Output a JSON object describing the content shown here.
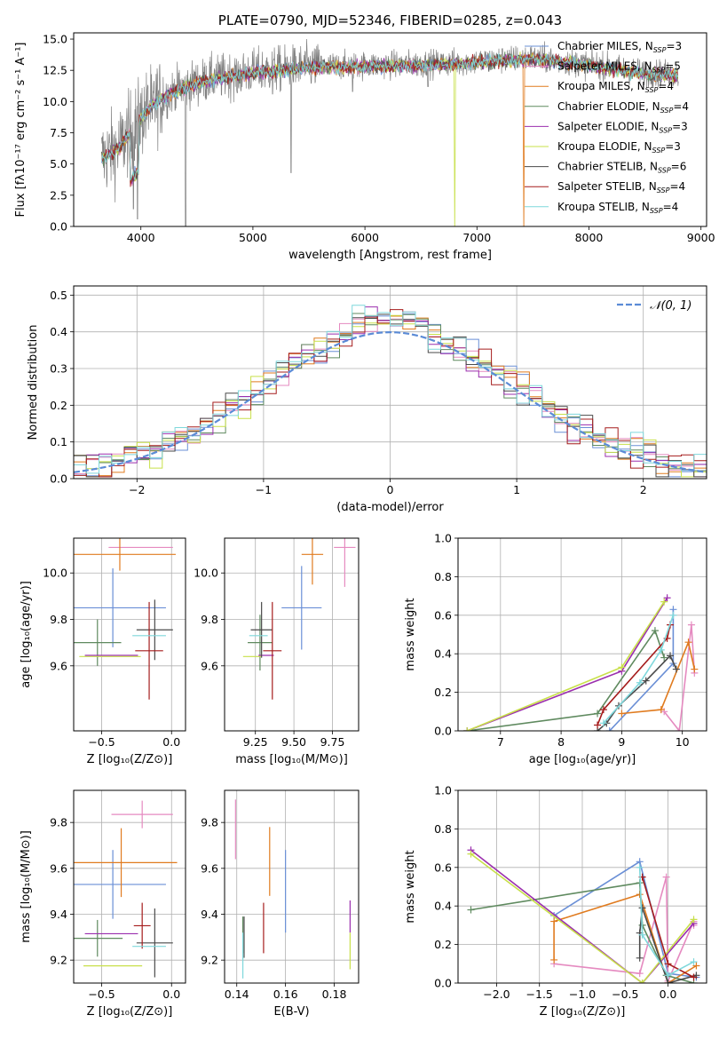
{
  "colors": {
    "Chabrier MILES": "#6a8fd6",
    "Salpeter MILES": "#e58ac0",
    "Kroupa MILES": "#e07b1f",
    "Chabrier ELODIE": "#5f8a5f",
    "Salpeter ELODIE": "#9b2fae",
    "Kroupa ELODIE": "#c8e04a",
    "Chabrier STELIB": "#4a4a4a",
    "Salpeter STELIB": "#a51c1c",
    "Kroupa STELIB": "#7fd8dc"
  },
  "chart_data": [
    {
      "id": "spectrum",
      "type": "line",
      "title": "PLATE=0790, MJD=52346, FIBERID=0285, z=0.043",
      "xlabel": "wavelength [Angstrom, rest frame]",
      "ylabel": "Flux [fλ10⁻¹⁷ erg cm⁻² s⁻¹ A⁻¹]",
      "xlim": [
        3400,
        9050
      ],
      "ylim": [
        0,
        15.5
      ],
      "xticks": [
        4000,
        5000,
        6000,
        7000,
        8000,
        9000
      ],
      "yticks": [
        0.0,
        2.5,
        5.0,
        7.5,
        10.0,
        12.5,
        15.0
      ],
      "grid": false,
      "legend_position": "right",
      "legend": [
        {
          "label": "Chabrier MILES, N",
          "sub": "SSP",
          "tail": "=3",
          "color": "#6a8fd6"
        },
        {
          "label": "Salpeter MILES, N",
          "sub": "SSP",
          "tail": "=5",
          "color": "#e58ac0"
        },
        {
          "label": "Kroupa MILES, N",
          "sub": "SSP",
          "tail": "=4",
          "color": "#e07b1f"
        },
        {
          "label": "Chabrier ELODIE, N",
          "sub": "SSP",
          "tail": "=4",
          "color": "#5f8a5f"
        },
        {
          "label": "Salpeter ELODIE, N",
          "sub": "SSP",
          "tail": "=3",
          "color": "#9b2fae"
        },
        {
          "label": "Kroupa ELODIE, N",
          "sub": "SSP",
          "tail": "=3",
          "color": "#c8e04a"
        },
        {
          "label": "Chabrier STELIB, N",
          "sub": "SSP",
          "tail": "=6",
          "color": "#4a4a4a"
        },
        {
          "label": "Salpeter STELIB, N",
          "sub": "SSP",
          "tail": "=4",
          "color": "#a51c1c"
        },
        {
          "label": "Kroupa STELIB, N",
          "sub": "SSP",
          "tail": "=4",
          "color": "#7fd8dc"
        }
      ],
      "observed_color": "#7f7f7f",
      "continuum": [
        [
          3650,
          5.5
        ],
        [
          3800,
          6.3
        ],
        [
          3950,
          8.2
        ],
        [
          4100,
          9.8
        ],
        [
          4300,
          10.9
        ],
        [
          4600,
          11.8
        ],
        [
          5000,
          12.4
        ],
        [
          5500,
          12.8
        ],
        [
          6000,
          12.9
        ],
        [
          6500,
          13.0
        ],
        [
          7000,
          13.2
        ],
        [
          7500,
          13.5
        ],
        [
          8000,
          13.0
        ],
        [
          8500,
          12.3
        ],
        [
          8800,
          12.2
        ]
      ],
      "observed_dips": [
        [
          3934,
          1.4
        ],
        [
          3969,
          0.6
        ],
        [
          4102,
          8.6
        ],
        [
          4305,
          9.3
        ],
        [
          4400,
          0.0
        ],
        [
          4861,
          10.7
        ],
        [
          5175,
          10.6
        ],
        [
          5340,
          4.3
        ],
        [
          5890,
          10.8
        ],
        [
          6563,
          11.2
        ]
      ],
      "model_dropouts": [
        {
          "series": "Kroupa ELODIE",
          "x": 6800
        },
        {
          "series": "Kroupa MILES",
          "x": 7420
        }
      ]
    },
    {
      "id": "residuals",
      "type": "step",
      "xlabel": "(data-model)/error",
      "ylabel": "Normed distribution",
      "xlim": [
        -2.5,
        2.5
      ],
      "ylim": [
        0,
        0.525
      ],
      "xticks": [
        -2,
        -1,
        0,
        1,
        2
      ],
      "yticks": [
        0.0,
        0.1,
        0.2,
        0.3,
        0.4,
        0.5
      ],
      "grid": true,
      "bin_width": 0.1,
      "reference": {
        "label": "𝒩(0, 1)",
        "color": "#5b8bd6",
        "legend_position": "top-right"
      }
    },
    {
      "id": "age-vs-Z",
      "type": "errorbar",
      "xlabel": "Z [log₁₀(Z/Z⊙)]",
      "ylabel": "age  [log₁₀(age/yr)]",
      "xlim": [
        -0.7,
        0.1
      ],
      "ylim": [
        9.32,
        10.15
      ],
      "xticks": [
        -0.5,
        0.0
      ],
      "yticks": [
        9.6,
        9.8,
        10.0
      ],
      "grid": true,
      "points": [
        {
          "series": "Chabrier MILES",
          "x": -0.42,
          "xerr": 0.38,
          "y": 9.85,
          "yerr": 0.17
        },
        {
          "series": "Salpeter MILES",
          "x": -0.22,
          "xerr": 0.23,
          "y": 10.11,
          "yerr": 0.0
        },
        {
          "series": "Kroupa MILES",
          "x": -0.37,
          "xerr": 0.4,
          "y": 10.08,
          "yerr": 0.07
        },
        {
          "series": "Chabrier ELODIE",
          "x": -0.53,
          "xerr": 0.17,
          "y": 9.7,
          "yerr": 0.1
        },
        {
          "series": "Salpeter ELODIE",
          "x": -0.43,
          "xerr": 0.19,
          "y": 9.645,
          "yerr": 0.0
        },
        {
          "series": "Kroupa ELODIE",
          "x": -0.44,
          "xerr": 0.22,
          "y": 9.64,
          "yerr": 0.0
        },
        {
          "series": "Chabrier STELIB",
          "x": -0.12,
          "xerr": 0.13,
          "y": 9.755,
          "yerr": 0.13
        },
        {
          "series": "Salpeter STELIB",
          "x": -0.16,
          "xerr": 0.1,
          "y": 9.665,
          "yerr": 0.21
        },
        {
          "series": "Kroupa STELIB",
          "x": -0.16,
          "xerr": 0.12,
          "y": 9.73,
          "yerr": 0.0
        }
      ]
    },
    {
      "id": "age-vs-mass",
      "type": "errorbar",
      "xlabel": "mass [log₁₀(M/M⊙)]",
      "ylabel": "",
      "xlim": [
        9.05,
        9.92
      ],
      "ylim": [
        9.32,
        10.15
      ],
      "xticks": [
        9.25,
        9.5,
        9.75
      ],
      "yticks": [
        9.6,
        9.8,
        10.0
      ],
      "grid": true,
      "points": [
        {
          "series": "Chabrier MILES",
          "x": 9.55,
          "xerr": 0.13,
          "y": 9.85,
          "yerr": 0.18
        },
        {
          "series": "Salpeter MILES",
          "x": 9.83,
          "xerr": 0.07,
          "y": 10.11,
          "yerr": 0.17
        },
        {
          "series": "Kroupa MILES",
          "x": 9.62,
          "xerr": 0.07,
          "y": 10.08,
          "yerr": 0.13
        },
        {
          "series": "Chabrier ELODIE",
          "x": 9.28,
          "xerr": 0.08,
          "y": 9.7,
          "yerr": 0.12
        },
        {
          "series": "Salpeter ELODIE",
          "x": 9.32,
          "xerr": 0.05,
          "y": 9.645,
          "yerr": 0.0
        },
        {
          "series": "Kroupa ELODIE",
          "x": 9.23,
          "xerr": 0.06,
          "y": 9.64,
          "yerr": 0.0
        },
        {
          "series": "Chabrier STELIB",
          "x": 9.29,
          "xerr": 0.07,
          "y": 9.755,
          "yerr": 0.12
        },
        {
          "series": "Salpeter STELIB",
          "x": 9.36,
          "xerr": 0.06,
          "y": 9.665,
          "yerr": 0.21
        },
        {
          "series": "Kroupa STELIB",
          "x": 9.27,
          "xerr": 0.06,
          "y": 9.73,
          "yerr": 0.0
        }
      ]
    },
    {
      "id": "massweight-vs-age",
      "type": "line",
      "xlabel": "age  [log₁₀(age/yr)]",
      "ylabel": "mass weight",
      "xlim": [
        6.3,
        10.4
      ],
      "ylim": [
        0,
        1
      ],
      "xticks": [
        7,
        8,
        9,
        10
      ],
      "yticks": [
        0.0,
        0.2,
        0.4,
        0.6,
        0.8,
        1.0
      ],
      "grid": true,
      "series": [
        {
          "name": "Chabrier MILES",
          "x": [
            8.8,
            9.85,
            9.85
          ],
          "y": [
            0.0,
            0.35,
            0.63
          ]
        },
        {
          "name": "Salpeter MILES",
          "x": [
            9.7,
            9.95,
            10.15,
            10.2
          ],
          "y": [
            0.1,
            0.0,
            0.55,
            0.3
          ]
        },
        {
          "name": "Kroupa MILES",
          "x": [
            9.0,
            9.65,
            10.1,
            10.2
          ],
          "y": [
            0.09,
            0.11,
            0.46,
            0.32
          ]
        },
        {
          "name": "Chabrier ELODIE",
          "x": [
            6.45,
            8.6,
            9.55,
            9.7
          ],
          "y": [
            0.0,
            0.09,
            0.52,
            0.38
          ]
        },
        {
          "name": "Salpeter ELODIE",
          "x": [
            6.45,
            9.0,
            9.75
          ],
          "y": [
            0.0,
            0.31,
            0.69
          ]
        },
        {
          "name": "Kroupa ELODIE",
          "x": [
            6.45,
            9.0,
            9.7
          ],
          "y": [
            0.0,
            0.33,
            0.67
          ]
        },
        {
          "name": "Chabrier STELIB",
          "x": [
            8.6,
            8.75,
            8.95,
            9.4,
            9.8,
            9.9
          ],
          "y": [
            0.0,
            0.04,
            0.13,
            0.26,
            0.39,
            0.32
          ]
        },
        {
          "name": "Salpeter STELIB",
          "x": [
            8.6,
            8.7,
            9.75,
            9.8
          ],
          "y": [
            0.03,
            0.11,
            0.48,
            0.55
          ]
        },
        {
          "name": "Kroupa STELIB",
          "x": [
            8.7,
            9.3,
            9.65,
            9.85
          ],
          "y": [
            0.04,
            0.25,
            0.42,
            0.6
          ]
        }
      ]
    },
    {
      "id": "mass-vs-Z",
      "type": "errorbar",
      "xlabel": "Z [log₁₀(Z/Z⊙)]",
      "ylabel": "mass [log₁₀(M/M⊙)]",
      "xlim": [
        -0.7,
        0.1
      ],
      "ylim": [
        9.1,
        9.94
      ],
      "xticks": [
        -0.5,
        0.0
      ],
      "yticks": [
        9.2,
        9.4,
        9.6,
        9.8
      ],
      "grid": true,
      "points": [
        {
          "series": "Chabrier MILES",
          "x": -0.42,
          "xerr": 0.38,
          "y": 9.53,
          "yerr": 0.15
        },
        {
          "series": "Salpeter MILES",
          "x": -0.21,
          "xerr": 0.22,
          "y": 9.835,
          "yerr": 0.06
        },
        {
          "series": "Kroupa MILES",
          "x": -0.36,
          "xerr": 0.4,
          "y": 9.625,
          "yerr": 0.15
        },
        {
          "series": "Chabrier ELODIE",
          "x": -0.53,
          "xerr": 0.18,
          "y": 9.295,
          "yerr": 0.08
        },
        {
          "series": "Salpeter ELODIE",
          "x": -0.43,
          "xerr": 0.19,
          "y": 9.315,
          "yerr": 0.0
        },
        {
          "series": "Kroupa ELODIE",
          "x": -0.42,
          "xerr": 0.21,
          "y": 9.175,
          "yerr": 0.0
        },
        {
          "series": "Chabrier STELIB",
          "x": -0.12,
          "xerr": 0.13,
          "y": 9.275,
          "yerr": 0.15
        },
        {
          "series": "Salpeter STELIB",
          "x": -0.21,
          "xerr": 0.06,
          "y": 9.35,
          "yerr": 0.1
        },
        {
          "series": "Kroupa STELIB",
          "x": -0.16,
          "xerr": 0.12,
          "y": 9.26,
          "yerr": 0.0
        }
      ]
    },
    {
      "id": "mass-vs-ebv",
      "type": "errorbar",
      "xlabel": "E(B-V)",
      "ylabel": "",
      "xlim": [
        0.135,
        0.19
      ],
      "ylim": [
        9.1,
        9.94
      ],
      "xticks": [
        0.14,
        0.16,
        0.18
      ],
      "yticks": [
        9.2,
        9.4,
        9.6,
        9.8
      ],
      "grid": true,
      "points": [
        {
          "series": "Chabrier MILES",
          "x": 0.16,
          "xerr": 0,
          "y": 9.5,
          "yerr": 0.18
        },
        {
          "series": "Salpeter MILES",
          "x": 0.1395,
          "xerr": 0,
          "y": 9.77,
          "yerr": 0.13
        },
        {
          "series": "Kroupa MILES",
          "x": 0.1535,
          "xerr": 0,
          "y": 9.63,
          "yerr": 0.15
        },
        {
          "series": "Chabrier ELODIE",
          "x": 0.1425,
          "xerr": 0,
          "y": 9.31,
          "yerr": 0.08
        },
        {
          "series": "Salpeter ELODIE",
          "x": 0.1865,
          "xerr": 0,
          "y": 9.39,
          "yerr": 0.07
        },
        {
          "series": "Kroupa ELODIE",
          "x": 0.1865,
          "xerr": 0,
          "y": 9.24,
          "yerr": 0.08
        },
        {
          "series": "Chabrier STELIB",
          "x": 0.143,
          "xerr": 0,
          "y": 9.3,
          "yerr": 0.09
        },
        {
          "series": "Salpeter STELIB",
          "x": 0.151,
          "xerr": 0,
          "y": 9.34,
          "yerr": 0.11
        },
        {
          "series": "Kroupa STELIB",
          "x": 0.1425,
          "xerr": 0,
          "y": 9.22,
          "yerr": 0.1
        }
      ]
    },
    {
      "id": "massweight-vs-Z",
      "type": "line",
      "xlabel": "Z [log₁₀(Z/Z⊙)]",
      "ylabel": "mass weight",
      "xlim": [
        -2.45,
        0.45
      ],
      "ylim": [
        0,
        1
      ],
      "xticks": [
        -2.0,
        -1.5,
        -1.0,
        -0.5,
        0.0
      ],
      "yticks": [
        0.0,
        0.2,
        0.4,
        0.6,
        0.8,
        1.0
      ],
      "grid": true,
      "series": [
        {
          "name": "Chabrier MILES",
          "x": [
            -1.33,
            -0.33,
            0.0,
            0.33
          ],
          "y": [
            0.35,
            0.63,
            0.05,
            0.03
          ]
        },
        {
          "name": "Salpeter MILES",
          "x": [
            -1.33,
            -0.33,
            -0.02,
            0.0,
            0.3,
            0.3
          ],
          "y": [
            0.1,
            0.05,
            0.55,
            0.01,
            0.32,
            0.3
          ]
        },
        {
          "name": "Kroupa MILES",
          "x": [
            -1.33,
            -1.33,
            -0.33,
            0.0,
            0.33
          ],
          "y": [
            0.12,
            0.32,
            0.46,
            0.0,
            0.09
          ]
        },
        {
          "name": "Chabrier ELODIE",
          "x": [
            -2.3,
            -0.33,
            -0.3,
            -0.02,
            0.3
          ],
          "y": [
            0.38,
            0.52,
            0.3,
            0.04,
            0.0
          ]
        },
        {
          "name": "Salpeter ELODIE",
          "x": [
            -2.3,
            -0.3,
            0.3
          ],
          "y": [
            0.69,
            0.0,
            0.31
          ]
        },
        {
          "name": "Kroupa ELODIE",
          "x": [
            -2.3,
            -0.3,
            0.3
          ],
          "y": [
            0.67,
            0.0,
            0.33
          ]
        },
        {
          "name": "Chabrier STELIB",
          "x": [
            -0.33,
            -0.33,
            -0.3,
            0.0,
            0.33
          ],
          "y": [
            0.13,
            0.26,
            0.39,
            0.0,
            0.04
          ]
        },
        {
          "name": "Salpeter STELIB",
          "x": [
            -0.3,
            0.0,
            0.3
          ],
          "y": [
            0.55,
            0.1,
            0.03
          ]
        },
        {
          "name": "Kroupa STELIB",
          "x": [
            -0.33,
            -0.3,
            0.0,
            0.3
          ],
          "y": [
            0.6,
            0.25,
            0.04,
            0.11
          ]
        }
      ]
    }
  ]
}
